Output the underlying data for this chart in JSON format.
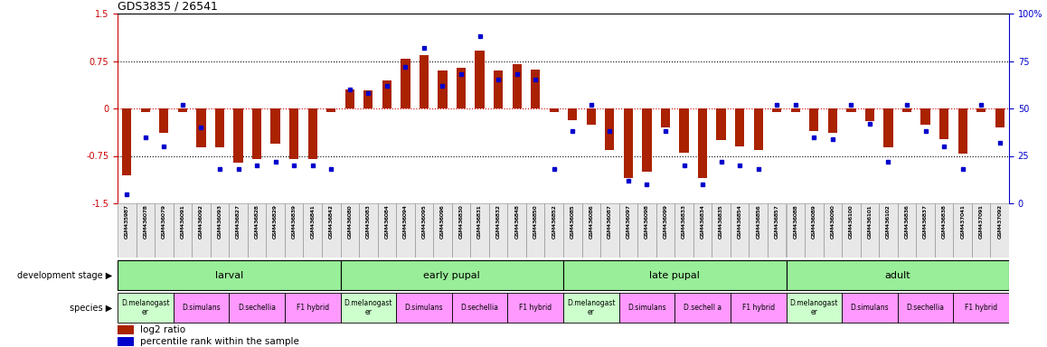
{
  "title": "GDS3835 / 26541",
  "sample_ids": [
    "GSM435987",
    "GSM436078",
    "GSM436079",
    "GSM436091",
    "GSM436092",
    "GSM436093",
    "GSM436827",
    "GSM436828",
    "GSM436829",
    "GSM436839",
    "GSM436841",
    "GSM436842",
    "GSM436080",
    "GSM436083",
    "GSM436084",
    "GSM436094",
    "GSM436095",
    "GSM436096",
    "GSM436830",
    "GSM436831",
    "GSM436832",
    "GSM436848",
    "GSM436850",
    "GSM436852",
    "GSM436085",
    "GSM436086",
    "GSM436087",
    "GSM436097",
    "GSM436098",
    "GSM436099",
    "GSM436833",
    "GSM436834",
    "GSM436835",
    "GSM436854",
    "GSM436856",
    "GSM436857",
    "GSM436088",
    "GSM436089",
    "GSM436090",
    "GSM436100",
    "GSM436101",
    "GSM436102",
    "GSM436836",
    "GSM436837",
    "GSM436838",
    "GSM437041",
    "GSM437091",
    "GSM437092"
  ],
  "log2_ratio": [
    -1.05,
    -0.05,
    -0.38,
    -0.05,
    -0.62,
    -0.62,
    -0.85,
    -0.8,
    -0.55,
    -0.8,
    -0.8,
    -0.05,
    0.3,
    0.28,
    0.45,
    0.78,
    0.85,
    0.6,
    0.65,
    0.92,
    0.6,
    0.7,
    0.62,
    -0.05,
    -0.18,
    -0.25,
    -0.65,
    -1.1,
    -1.0,
    -0.3,
    -0.7,
    -1.1,
    -0.5,
    -0.6,
    -0.65,
    -0.05,
    -0.05,
    -0.35,
    -0.38,
    -0.05,
    -0.2,
    -0.62,
    -0.05,
    -0.25,
    -0.48,
    -0.72,
    -0.05,
    -0.3
  ],
  "percentile": [
    5,
    35,
    30,
    52,
    40,
    18,
    18,
    20,
    22,
    20,
    20,
    18,
    60,
    58,
    62,
    72,
    82,
    62,
    68,
    88,
    65,
    68,
    65,
    18,
    38,
    52,
    38,
    12,
    10,
    38,
    20,
    10,
    22,
    20,
    18,
    52,
    52,
    35,
    34,
    52,
    42,
    22,
    52,
    38,
    30,
    18,
    52,
    32
  ],
  "dev_stages": [
    {
      "label": "larval",
      "start": 0,
      "end": 12
    },
    {
      "label": "early pupal",
      "start": 12,
      "end": 24
    },
    {
      "label": "late pupal",
      "start": 24,
      "end": 36
    },
    {
      "label": "adult",
      "start": 36,
      "end": 48
    }
  ],
  "species_bands": [
    {
      "label": "D.melanogast\ner",
      "start": 0,
      "end": 3,
      "green": true
    },
    {
      "label": "D.simulans",
      "start": 3,
      "end": 6,
      "green": false
    },
    {
      "label": "D.sechellia",
      "start": 6,
      "end": 9,
      "green": false
    },
    {
      "label": "F1 hybrid",
      "start": 9,
      "end": 12,
      "green": false
    },
    {
      "label": "D.melanogast\ner",
      "start": 12,
      "end": 15,
      "green": true
    },
    {
      "label": "D.simulans",
      "start": 15,
      "end": 18,
      "green": false
    },
    {
      "label": "D.sechellia",
      "start": 18,
      "end": 21,
      "green": false
    },
    {
      "label": "F1 hybrid",
      "start": 21,
      "end": 24,
      "green": false
    },
    {
      "label": "D.melanogast\ner",
      "start": 24,
      "end": 27,
      "green": true
    },
    {
      "label": "D.simulans",
      "start": 27,
      "end": 30,
      "green": false
    },
    {
      "label": "D.sechell a",
      "start": 30,
      "end": 33,
      "green": false
    },
    {
      "label": "F1 hybrid",
      "start": 33,
      "end": 36,
      "green": false
    },
    {
      "label": "D.melanogast\ner",
      "start": 36,
      "end": 39,
      "green": true
    },
    {
      "label": "D.simulans",
      "start": 39,
      "end": 42,
      "green": false
    },
    {
      "label": "D.sechellia",
      "start": 42,
      "end": 45,
      "green": false
    },
    {
      "label": "F1 hybrid",
      "start": 45,
      "end": 48,
      "green": false
    }
  ],
  "green_color": "#ccffcc",
  "pink_color": "#ff99ff",
  "dev_color": "#99ee99",
  "bar_color": "#aa2200",
  "dot_color": "#0000cc",
  "ylim": [
    -1.5,
    1.5
  ],
  "y2lim": [
    0,
    100
  ],
  "yticks_left": [
    -1.5,
    -0.75,
    0,
    0.75,
    1.5
  ],
  "yticks_right": [
    0,
    25,
    50,
    75,
    100
  ],
  "bg_color": "#ffffff"
}
